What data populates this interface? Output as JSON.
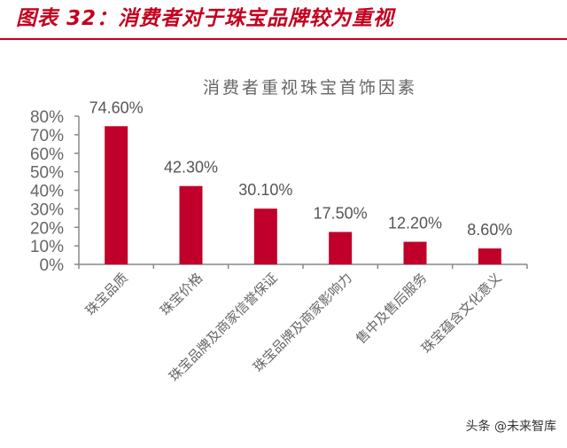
{
  "figure": {
    "title": "图表 32：消费者对于珠宝品牌较为重视",
    "accent_color": "#C4001F"
  },
  "chart_data": {
    "type": "bar",
    "title": "消费者重视珠宝首饰因素",
    "categories": [
      "珠宝品质",
      "珠宝价格",
      "珠宝品牌及商家信誉保证",
      "珠宝品牌及商家影响力",
      "售中及售后服务",
      "珠宝蕴含文化意义"
    ],
    "values": [
      74.6,
      42.3,
      30.1,
      17.5,
      12.2,
      8.6
    ],
    "data_labels": [
      "74.60%",
      "42.30%",
      "30.10%",
      "17.50%",
      "12.20%",
      "8.60%"
    ],
    "xlabel": "",
    "ylabel": "",
    "ylim": [
      0,
      80
    ],
    "yticks": [
      "0%",
      "10%",
      "20%",
      "30%",
      "40%",
      "50%",
      "60%",
      "70%",
      "80%"
    ],
    "grid": false,
    "legend": null,
    "bar_color": "#C0002A"
  },
  "watermark": "头条 @未来智库"
}
